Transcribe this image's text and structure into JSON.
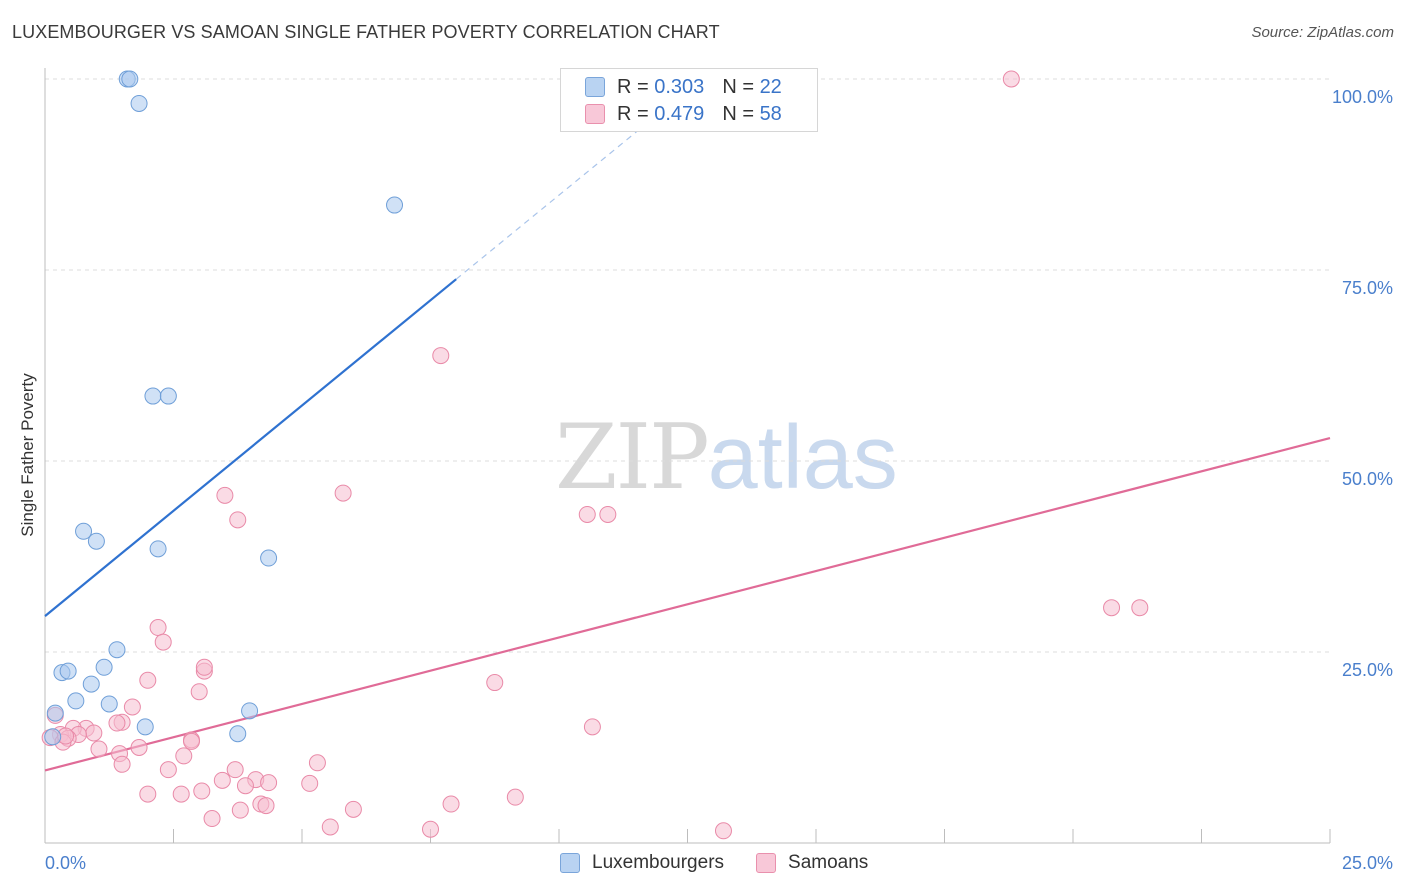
{
  "header": {
    "title": "LUXEMBOURGER VS SAMOAN SINGLE FATHER POVERTY CORRELATION CHART",
    "source": "Source: ZipAtlas.com"
  },
  "legend": {
    "rows": [
      {
        "r_label": "R =",
        "r_value": "0.303",
        "n_label": "N =",
        "n_value": "22"
      },
      {
        "r_label": "R =",
        "r_value": "0.479",
        "n_label": "N =",
        "n_value": "58"
      }
    ]
  },
  "watermark": {
    "part1": "ZIP",
    "part2": "atlas"
  },
  "chart_data": {
    "type": "scatter",
    "title": "LUXEMBOURGER VS SAMOAN SINGLE FATHER POVERTY CORRELATION CHART",
    "ylabel": "Single Father Poverty",
    "xlabel": "",
    "xlim": [
      0,
      25
    ],
    "ylim": [
      0,
      100
    ],
    "x_tick_labels": [
      "0.0%",
      "25.0%"
    ],
    "y_tick_labels": [
      "25.0%",
      "50.0%",
      "75.0%",
      "100.0%"
    ],
    "y_ticks": [
      25,
      50,
      75,
      100
    ],
    "grid": true,
    "legend_position": "top-center",
    "series": [
      {
        "name": "Luxembourgers",
        "color": "#aac8ee",
        "stroke": "#6f9fd8",
        "line_color": "#2f72d0",
        "r": 0.303,
        "n": 22,
        "trend": {
          "x0": 0,
          "y0": 29.7,
          "x1": 8.0,
          "y1": 73.8,
          "dash_to_x": 12.0,
          "dash_to_y": 95.8
        },
        "points": [
          [
            1.6,
            100
          ],
          [
            1.65,
            100
          ],
          [
            1.83,
            96.8
          ],
          [
            6.8,
            83.5
          ],
          [
            2.1,
            58.5
          ],
          [
            2.4,
            58.5
          ],
          [
            0.75,
            40.8
          ],
          [
            1.0,
            39.5
          ],
          [
            2.2,
            38.5
          ],
          [
            4.35,
            37.3
          ],
          [
            1.4,
            25.3
          ],
          [
            1.15,
            23.0
          ],
          [
            0.33,
            22.3
          ],
          [
            0.45,
            22.5
          ],
          [
            0.9,
            20.8
          ],
          [
            0.6,
            18.6
          ],
          [
            1.25,
            18.2
          ],
          [
            3.98,
            17.3
          ],
          [
            0.2,
            17.0
          ],
          [
            1.95,
            15.2
          ],
          [
            3.75,
            14.3
          ],
          [
            0.15,
            13.9
          ]
        ]
      },
      {
        "name": "Samoans",
        "color": "#f6bdd0",
        "stroke": "#e98aa8",
        "line_color": "#e06b97",
        "r": 0.479,
        "n": 58,
        "trend": {
          "x0": 0,
          "y0": 9.5,
          "x1": 25,
          "y1": 53.0
        },
        "points": [
          [
            18.8,
            100
          ],
          [
            7.7,
            63.8
          ],
          [
            3.5,
            45.5
          ],
          [
            5.8,
            45.8
          ],
          [
            3.75,
            42.3
          ],
          [
            10.55,
            43.0
          ],
          [
            10.95,
            43.0
          ],
          [
            20.75,
            30.8
          ],
          [
            21.3,
            30.8
          ],
          [
            2.2,
            28.2
          ],
          [
            2.3,
            26.3
          ],
          [
            3.1,
            22.5
          ],
          [
            3.1,
            23.0
          ],
          [
            2.0,
            21.3
          ],
          [
            8.75,
            21.0
          ],
          [
            3.0,
            19.8
          ],
          [
            1.7,
            17.8
          ],
          [
            1.5,
            15.8
          ],
          [
            1.4,
            15.7
          ],
          [
            0.2,
            16.7
          ],
          [
            0.8,
            15.0
          ],
          [
            0.55,
            15.0
          ],
          [
            0.95,
            14.4
          ],
          [
            0.65,
            14.2
          ],
          [
            10.65,
            15.2
          ],
          [
            0.3,
            14.2
          ],
          [
            0.1,
            13.8
          ],
          [
            0.45,
            13.7
          ],
          [
            0.35,
            13.2
          ],
          [
            1.45,
            11.7
          ],
          [
            1.05,
            12.3
          ],
          [
            1.83,
            12.5
          ],
          [
            2.85,
            13.5
          ],
          [
            2.7,
            11.4
          ],
          [
            5.3,
            10.5
          ],
          [
            1.5,
            10.3
          ],
          [
            2.4,
            9.6
          ],
          [
            3.7,
            9.6
          ],
          [
            3.45,
            8.2
          ],
          [
            4.1,
            8.3
          ],
          [
            4.35,
            7.9
          ],
          [
            5.15,
            7.8
          ],
          [
            3.9,
            7.5
          ],
          [
            3.05,
            6.8
          ],
          [
            2.0,
            6.4
          ],
          [
            2.65,
            6.4
          ],
          [
            9.15,
            6.0
          ],
          [
            7.9,
            5.1
          ],
          [
            4.2,
            5.1
          ],
          [
            4.3,
            4.9
          ],
          [
            6.0,
            4.4
          ],
          [
            3.8,
            4.3
          ],
          [
            3.25,
            3.2
          ],
          [
            5.55,
            2.1
          ],
          [
            7.5,
            1.8
          ],
          [
            13.2,
            1.6
          ],
          [
            0.4,
            14.0
          ],
          [
            2.85,
            13.3
          ]
        ]
      }
    ]
  }
}
